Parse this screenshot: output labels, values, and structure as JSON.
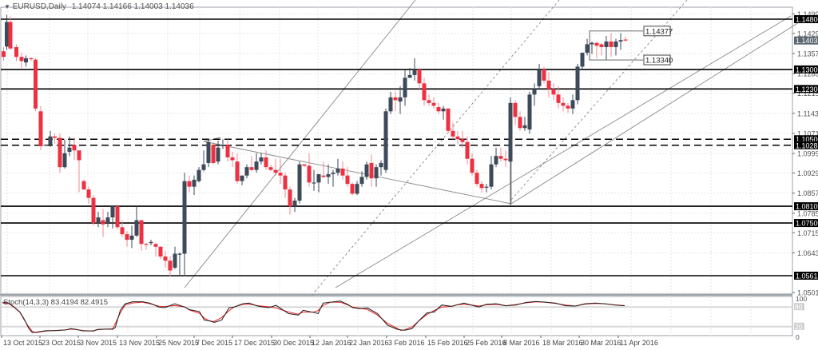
{
  "header": {
    "symbol_label": "EURUSD,Daily",
    "ohlc": "1.14074 1.14166 1.14003 1.14036",
    "collapse_icon": "triangle-down-icon"
  },
  "indicator": {
    "label": "Stoch(14,3,3) 83.4194 82.4915"
  },
  "colors": {
    "bull": "#3d4a5a",
    "bear": "#ee3040",
    "grid": "#e6e6e6",
    "level_line": "#000000",
    "trendline": "#888888",
    "stoch_main": "#222222",
    "stoch_signal": "#ee2020"
  },
  "chart_data": {
    "type": "candlestick",
    "title": "EURUSD,Daily",
    "price_axis_ticks": [
      "1.14990",
      "1.14290",
      "1.13570",
      "1.12850",
      "1.12150",
      "1.11430",
      "1.10710",
      "1.09990",
      "1.09290",
      "1.08570",
      "1.07850",
      "1.07150",
      "1.06430",
      "1.05010"
    ],
    "current_price": "1.14036",
    "horizontal_levels": [
      {
        "price": "1.14800",
        "style": "solid"
      },
      {
        "price": "1.13000",
        "style": "solid"
      },
      {
        "price": "1.12300",
        "style": "solid"
      },
      {
        "price": "1.10500",
        "style": "dashed"
      },
      {
        "price": "1.10285",
        "style": "dashed"
      },
      {
        "price": "1.08100",
        "style": "solid"
      },
      {
        "price": "1.07500",
        "style": "solid"
      },
      {
        "price": "1.05613",
        "style": "solid"
      }
    ],
    "range_box": {
      "high": "1.14377",
      "low": "1.13340"
    },
    "x_tick_labels": [
      "13 Oct 2015",
      "23 Oct 2015",
      "3 Nov 2015",
      "13 Nov 2015",
      "25 Nov 2015",
      "7 Dec 2015",
      "17 Dec 2015",
      "30 Dec 2015",
      "12 Jan 2016",
      "22 Jan 2016",
      "3 Feb 2016",
      "15 Feb 2016",
      "25 Feb 2016",
      "8 Mar 2016",
      "18 Mar 2016",
      "30 Mar 2016",
      "11 Apr 2016"
    ],
    "stochastic": {
      "params": "14,3,3",
      "main": 83.4194,
      "signal": 82.4915,
      "levels": [
        80,
        20
      ],
      "axis": [
        "100",
        "80",
        "20",
        "0"
      ]
    },
    "candles": [
      [
        4.5,
        1.1365,
        1.138,
        1.133,
        1.1345
      ],
      [
        8.5,
        1.1382,
        1.1495,
        1.137,
        1.147
      ],
      [
        13,
        1.147,
        1.149,
        1.137,
        1.1375
      ],
      [
        20.5,
        1.138,
        1.139,
        1.133,
        1.1345
      ],
      [
        27,
        1.1345,
        1.136,
        1.1305,
        1.133
      ],
      [
        32.5,
        1.1325,
        1.135,
        1.131,
        1.134
      ],
      [
        39,
        1.134,
        1.1345,
        1.133,
        1.1338
      ],
      [
        44.5,
        1.1335,
        1.134,
        1.115,
        1.116
      ],
      [
        51,
        1.115,
        1.117,
        1.101,
        1.1025
      ],
      [
        57,
        1.103,
        1.1032,
        1.1028,
        1.103
      ],
      [
        63,
        1.103,
        1.108,
        1.1022,
        1.106
      ],
      [
        68.5,
        1.106,
        1.107,
        1.1035,
        1.1055
      ],
      [
        75,
        1.1055,
        1.107,
        1.093,
        1.095
      ],
      [
        81,
        1.095,
        1.105,
        1.0945,
        1.1
      ],
      [
        87,
        1.1005,
        1.106,
        1.099,
        1.102
      ],
      [
        93,
        1.103,
        1.1055,
        1.0975,
        1.101
      ],
      [
        99,
        1.101,
        1.1,
        1.086,
        1.0975
      ],
      [
        105,
        1.09,
        1.0905,
        1.089,
        1.087
      ],
      [
        111,
        1.087,
        1.088,
        1.082,
        1.084
      ],
      [
        117,
        1.084,
        1.085,
        1.074,
        1.075
      ],
      [
        123,
        1.075,
        1.079,
        1.0735,
        1.077
      ],
      [
        129,
        1.076,
        1.08,
        1.07,
        1.0745
      ],
      [
        135,
        1.075,
        1.079,
        1.0735,
        1.077
      ],
      [
        141,
        1.077,
        1.081,
        1.073,
        1.081
      ],
      [
        147,
        1.081,
        1.081,
        1.0725,
        1.0735
      ],
      [
        153,
        1.0735,
        1.076,
        1.07,
        1.071
      ],
      [
        159,
        1.071,
        1.072,
        1.0665,
        1.069
      ],
      [
        165,
        1.069,
        1.074,
        1.066,
        1.0705
      ],
      [
        171,
        1.0705,
        1.081,
        1.07,
        1.076
      ],
      [
        177,
        1.076,
        1.0755,
        1.065,
        1.0675
      ],
      [
        183,
        1.0675,
        1.068,
        1.0655,
        1.0673
      ],
      [
        189,
        1.0678,
        1.069,
        1.067,
        1.0682
      ],
      [
        195,
        1.0675,
        1.068,
        1.063,
        1.0665
      ],
      [
        201,
        1.0665,
        1.0667,
        1.062,
        1.063
      ],
      [
        207,
        1.063,
        1.065,
        1.059,
        1.0615
      ],
      [
        213,
        1.0615,
        1.063,
        1.056,
        1.058
      ],
      [
        219,
        1.059,
        1.0665,
        1.0585,
        1.064
      ],
      [
        225,
        1.064,
        1.0645,
        1.056,
        1.064
      ],
      [
        231,
        1.064,
        1.093,
        1.056,
        1.09
      ],
      [
        237,
        1.09,
        1.092,
        1.086,
        1.088
      ],
      [
        243,
        1.088,
        1.092,
        1.085,
        1.0905
      ],
      [
        249,
        1.09,
        1.095,
        1.0895,
        1.094
      ],
      [
        255,
        1.094,
        1.101,
        1.0935,
        1.096
      ],
      [
        261,
        1.0965,
        1.105,
        1.095,
        1.104
      ],
      [
        267,
        1.103,
        1.104,
        1.096,
        1.0965
      ],
      [
        273,
        1.097,
        1.1045,
        1.096,
        1.102
      ],
      [
        279,
        1.1025,
        1.105,
        1.1015,
        1.103
      ],
      [
        285,
        1.103,
        1.105,
        1.097,
        1.0985
      ],
      [
        291,
        1.0985,
        1.1005,
        1.095,
        1.0975
      ],
      [
        297,
        1.097,
        1.1,
        1.089,
        1.09
      ],
      [
        303,
        1.09,
        1.09,
        1.0885,
        1.092
      ],
      [
        309,
        1.092,
        1.096,
        1.091,
        1.095
      ],
      [
        315,
        1.095,
        1.099,
        1.0935,
        1.094
      ],
      [
        321,
        1.094,
        1.1,
        1.093,
        1.097
      ],
      [
        327,
        1.097,
        1.1,
        1.096,
        1.0985
      ],
      [
        333,
        1.0985,
        1.101,
        1.094,
        1.095
      ],
      [
        339,
        1.095,
        1.096,
        1.0935,
        1.094
      ],
      [
        345,
        1.094,
        1.098,
        1.092,
        1.093
      ],
      [
        351,
        1.093,
        1.098,
        1.089,
        1.092
      ],
      [
        357,
        1.092,
        1.093,
        1.084,
        1.087
      ],
      [
        363,
        1.087,
        1.088,
        1.078,
        1.081
      ],
      [
        369,
        1.081,
        1.084,
        1.079,
        1.083
      ],
      [
        375,
        1.083,
        1.097,
        1.082,
        1.096
      ],
      [
        381,
        1.096,
        1.096,
        1.095,
        1.0955
      ],
      [
        387,
        1.0955,
        1.1,
        1.088,
        1.0895
      ],
      [
        393,
        1.0895,
        1.094,
        1.0865,
        1.0895
      ],
      [
        399,
        1.0895,
        1.092,
        1.086,
        1.0925
      ],
      [
        405,
        1.092,
        1.097,
        1.091,
        1.0915
      ],
      [
        411,
        1.0915,
        1.096,
        1.089,
        1.0925
      ],
      [
        417,
        1.0925,
        1.094,
        1.088,
        1.093
      ],
      [
        423,
        1.093,
        1.098,
        1.092,
        1.0945
      ],
      [
        429,
        1.0945,
        1.097,
        1.0905,
        1.092
      ],
      [
        435,
        1.092,
        1.095,
        1.088,
        1.089
      ],
      [
        441,
        1.089,
        1.0895,
        1.085,
        1.0855
      ],
      [
        447,
        1.0855,
        1.09,
        1.085,
        1.089
      ],
      [
        453,
        1.089,
        1.0935,
        1.088,
        1.0915
      ],
      [
        459,
        1.0915,
        1.097,
        1.0905,
        1.096
      ],
      [
        465,
        1.0965,
        1.0995,
        1.088,
        1.091
      ],
      [
        471,
        1.091,
        1.096,
        1.088,
        1.095
      ],
      [
        477,
        1.095,
        1.0975,
        1.092,
        1.0965
      ],
      [
        483,
        1.094,
        1.116,
        1.093,
        1.115
      ],
      [
        489,
        1.115,
        1.122,
        1.114,
        1.12
      ],
      [
        495,
        1.12,
        1.122,
        1.115,
        1.119
      ],
      [
        501,
        1.1185,
        1.124,
        1.114,
        1.12
      ],
      [
        507,
        1.12,
        1.13,
        1.117,
        1.127
      ],
      [
        513,
        1.127,
        1.1305,
        1.127,
        1.128
      ],
      [
        519,
        1.128,
        1.134,
        1.126,
        1.13
      ],
      [
        525,
        1.13,
        1.1305,
        1.123,
        1.125
      ],
      [
        531,
        1.125,
        1.127,
        1.117,
        1.119
      ],
      [
        537,
        1.119,
        1.121,
        1.117,
        1.118
      ],
      [
        543,
        1.118,
        1.12,
        1.116,
        1.117
      ],
      [
        549,
        1.1165,
        1.118,
        1.114,
        1.115
      ],
      [
        555,
        1.115,
        1.117,
        1.112,
        1.116
      ],
      [
        561,
        1.116,
        1.116,
        1.107,
        1.108
      ],
      [
        567,
        1.108,
        1.111,
        1.105,
        1.106
      ],
      [
        573,
        1.106,
        1.108,
        1.103,
        1.105
      ],
      [
        579,
        1.105,
        1.108,
        1.102,
        1.104
      ],
      [
        585,
        1.104,
        1.106,
        1.096,
        1.098
      ],
      [
        591,
        1.098,
        1.1,
        1.092,
        1.093
      ],
      [
        597,
        1.093,
        1.094,
        1.088,
        1.089
      ],
      [
        603,
        1.089,
        1.09,
        1.086,
        1.0875
      ],
      [
        609,
        1.088,
        1.089,
        1.086,
        1.088
      ],
      [
        615,
        1.088,
        1.099,
        1.087,
        1.096
      ],
      [
        621,
        1.096,
        1.102,
        1.095,
        1.099
      ],
      [
        627,
        1.099,
        1.102,
        1.097,
        1.098
      ],
      [
        633,
        1.098,
        1.101,
        1.095,
        1.0975
      ],
      [
        639,
        1.097,
        1.12,
        1.081,
        1.118
      ],
      [
        645,
        1.118,
        1.119,
        1.11,
        1.113
      ],
      [
        651,
        1.113,
        1.115,
        1.108,
        1.109
      ],
      [
        657,
        1.109,
        1.113,
        1.108,
        1.11
      ],
      [
        663,
        1.1085,
        1.122,
        1.107,
        1.121
      ],
      [
        669,
        1.121,
        1.125,
        1.117,
        1.123
      ],
      [
        675,
        1.124,
        1.132,
        1.123,
        1.13
      ],
      [
        681,
        1.13,
        1.131,
        1.125,
        1.126
      ],
      [
        687,
        1.126,
        1.129,
        1.12,
        1.123
      ],
      [
        693,
        1.123,
        1.125,
        1.119,
        1.121
      ],
      [
        699,
        1.121,
        1.124,
        1.116,
        1.118
      ],
      [
        705,
        1.118,
        1.12,
        1.115,
        1.117
      ],
      [
        711,
        1.117,
        1.118,
        1.1145,
        1.116
      ],
      [
        717,
        1.116,
        1.121,
        1.114,
        1.119
      ],
      [
        723,
        1.119,
        1.132,
        1.1175,
        1.131
      ],
      [
        729,
        1.131,
        1.136,
        1.13,
        1.136
      ],
      [
        735,
        1.136,
        1.141,
        1.135,
        1.139
      ],
      [
        741,
        1.139,
        1.14,
        1.1355,
        1.1395
      ],
      [
        747,
        1.1395,
        1.14,
        1.134,
        1.1385
      ],
      [
        753,
        1.139,
        1.1395,
        1.135,
        1.138
      ],
      [
        759,
        1.138,
        1.142,
        1.1335,
        1.14
      ],
      [
        765,
        1.14,
        1.143,
        1.1345,
        1.138
      ],
      [
        771,
        1.138,
        1.141,
        1.135,
        1.14
      ],
      [
        777,
        1.14,
        1.143,
        1.137,
        1.1405
      ],
      [
        783,
        1.1407,
        1.1417,
        1.14,
        1.1404
      ]
    ]
  }
}
